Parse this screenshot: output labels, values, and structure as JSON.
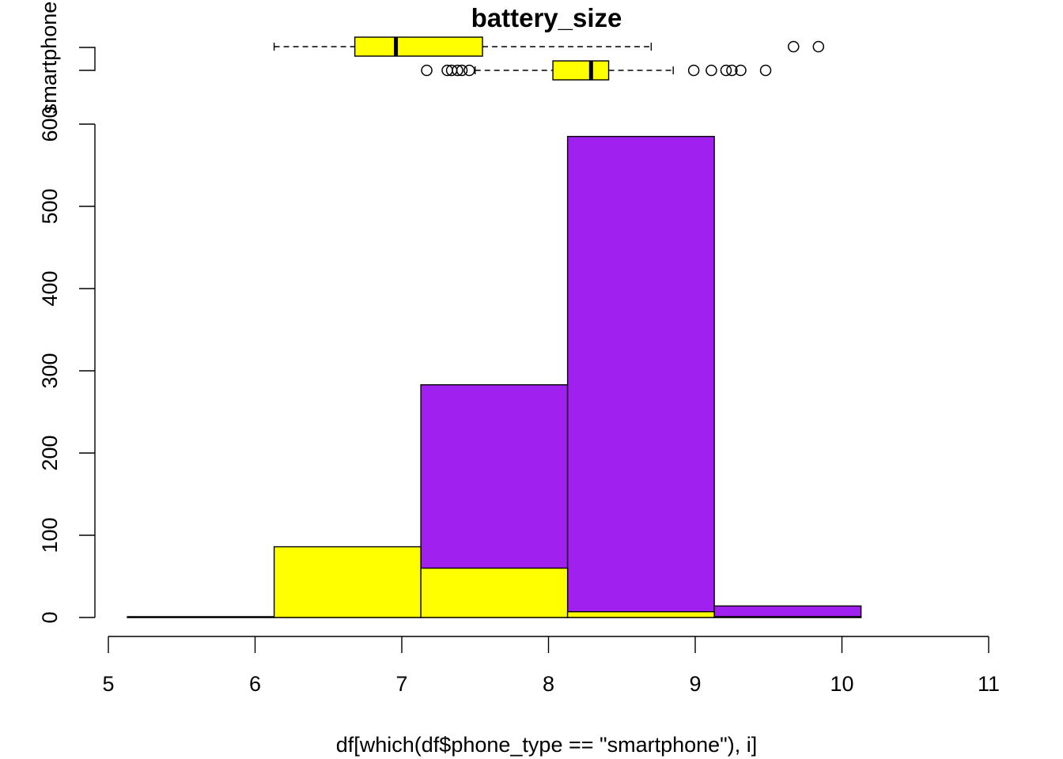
{
  "chart_data": [
    {
      "type": "boxplot",
      "title": "battery_size",
      "group_label": "smartphone",
      "orientation": "horizontal",
      "box_color": "#FFFF00",
      "boxes": [
        {
          "whisker_low": 6.13,
          "q1": 6.68,
          "median": 6.96,
          "q3": 7.55,
          "whisker_high": 8.7,
          "outliers": [
            9.67,
            9.84
          ]
        },
        {
          "whisker_low": 7.5,
          "q1": 8.03,
          "median": 8.29,
          "q3": 8.41,
          "whisker_high": 8.85,
          "outliers": [
            7.17,
            7.31,
            7.34,
            7.38,
            7.41,
            7.46,
            8.99,
            9.11,
            9.21,
            9.25,
            9.31,
            9.48
          ]
        }
      ]
    },
    {
      "type": "bar",
      "subtype": "histogram-overlay",
      "xlabel": "df[which(df$phone_type == \"smartphone\"), i]",
      "ylabel": "",
      "xlim": [
        5,
        11
      ],
      "ylim": [
        0,
        600
      ],
      "x_ticks": [
        5,
        6,
        7,
        8,
        9,
        10,
        11
      ],
      "y_ticks": [
        0,
        100,
        200,
        300,
        400,
        500,
        600
      ],
      "bin_edges": [
        5.13,
        6.13,
        7.13,
        8.13,
        9.13,
        10.13
      ],
      "series": [
        {
          "color": "#A020F0",
          "values": [
            0,
            0,
            283,
            585,
            14
          ]
        },
        {
          "color": "#FFFF00",
          "values": [
            1,
            86,
            60,
            7,
            1
          ]
        }
      ]
    }
  ]
}
